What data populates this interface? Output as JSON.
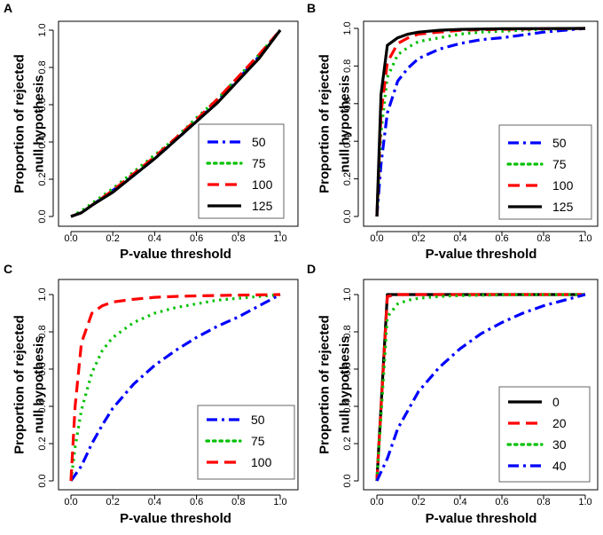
{
  "chart_data": [
    {
      "panel": "A",
      "type": "line",
      "xlabel": "P-value threshold",
      "ylabel": [
        "Proportion of rejected",
        "null  hypothesis"
      ],
      "xlim": [
        0,
        1
      ],
      "ylim": [
        0,
        1
      ],
      "xticks": [
        "0.0",
        "0.2",
        "0.4",
        "0.6",
        "0.8",
        "1.0"
      ],
      "yticks": [
        "0.0",
        "0.2",
        "0.4",
        "0.6",
        "0.8",
        "1.0"
      ],
      "legend_position": "bottom-right",
      "series": [
        {
          "name": "50",
          "color": "#0000ff",
          "style": "dashdot",
          "x": [
            0,
            0.05,
            0.1,
            0.2,
            0.3,
            0.4,
            0.5,
            0.6,
            0.7,
            0.8,
            0.9,
            1.0
          ],
          "y": [
            0,
            0.02,
            0.06,
            0.14,
            0.22,
            0.31,
            0.41,
            0.51,
            0.62,
            0.74,
            0.86,
            1.0
          ]
        },
        {
          "name": "75",
          "color": "#00c000",
          "style": "dotted",
          "x": [
            0,
            0.05,
            0.1,
            0.2,
            0.3,
            0.4,
            0.5,
            0.6,
            0.7,
            0.8,
            0.9,
            1.0
          ],
          "y": [
            0,
            0.03,
            0.07,
            0.15,
            0.24,
            0.33,
            0.42,
            0.53,
            0.63,
            0.75,
            0.87,
            1.0
          ]
        },
        {
          "name": "100",
          "color": "#ff0000",
          "style": "dashed",
          "x": [
            0,
            0.05,
            0.1,
            0.2,
            0.3,
            0.4,
            0.5,
            0.6,
            0.7,
            0.8,
            0.9,
            1.0
          ],
          "y": [
            0,
            0.02,
            0.06,
            0.14,
            0.23,
            0.32,
            0.42,
            0.52,
            0.63,
            0.75,
            0.87,
            1.0
          ]
        },
        {
          "name": "125",
          "color": "#000000",
          "style": "solid",
          "x": [
            0,
            0.05,
            0.1,
            0.2,
            0.3,
            0.4,
            0.5,
            0.6,
            0.7,
            0.8,
            0.9,
            1.0
          ],
          "y": [
            0,
            0.02,
            0.06,
            0.13,
            0.22,
            0.31,
            0.41,
            0.51,
            0.61,
            0.73,
            0.85,
            1.0
          ]
        }
      ]
    },
    {
      "panel": "B",
      "type": "line",
      "xlabel": "P-value threshold",
      "ylabel": [
        "Proportion of rejected",
        "null hypothesis"
      ],
      "xlim": [
        0,
        1
      ],
      "ylim": [
        0,
        1
      ],
      "xticks": [
        "0.0",
        "0.2",
        "0.4",
        "0.6",
        "0.8",
        "1.0"
      ],
      "yticks": [
        "0.0",
        "0.2",
        "0.4",
        "0.6",
        "0.8",
        "1.0"
      ],
      "legend_position": "bottom-right",
      "series": [
        {
          "name": "50",
          "color": "#0000ff",
          "style": "dashdot",
          "x": [
            0,
            0.02,
            0.05,
            0.1,
            0.15,
            0.2,
            0.3,
            0.4,
            0.5,
            0.6,
            0.7,
            0.8,
            0.9,
            1.0
          ],
          "y": [
            0,
            0.28,
            0.55,
            0.72,
            0.79,
            0.84,
            0.89,
            0.92,
            0.94,
            0.95,
            0.965,
            0.98,
            0.99,
            1.0
          ]
        },
        {
          "name": "75",
          "color": "#00c000",
          "style": "dotted",
          "x": [
            0,
            0.02,
            0.05,
            0.1,
            0.15,
            0.2,
            0.3,
            0.4,
            0.5,
            0.6,
            0.7,
            0.8,
            0.9,
            1.0
          ],
          "y": [
            0,
            0.45,
            0.74,
            0.86,
            0.9,
            0.93,
            0.95,
            0.97,
            0.98,
            0.985,
            0.99,
            0.995,
            0.998,
            1.0
          ]
        },
        {
          "name": "100",
          "color": "#ff0000",
          "style": "dashed",
          "x": [
            0,
            0.02,
            0.05,
            0.1,
            0.15,
            0.2,
            0.3,
            0.4,
            0.5,
            0.6,
            0.8,
            1.0
          ],
          "y": [
            0,
            0.55,
            0.82,
            0.92,
            0.95,
            0.97,
            0.98,
            0.99,
            0.993,
            0.995,
            0.998,
            1.0
          ]
        },
        {
          "name": "125",
          "color": "#000000",
          "style": "solid",
          "x": [
            0,
            0.02,
            0.05,
            0.1,
            0.15,
            0.2,
            0.3,
            0.4,
            0.6,
            0.8,
            1.0
          ],
          "y": [
            0,
            0.65,
            0.91,
            0.95,
            0.97,
            0.98,
            0.99,
            0.995,
            0.998,
            0.999,
            1.0
          ]
        }
      ]
    },
    {
      "panel": "C",
      "type": "line",
      "xlabel": "P-value threshold",
      "ylabel": [
        "Proportion of rejected",
        "null  hypothesis"
      ],
      "xlim": [
        0,
        1
      ],
      "ylim": [
        0,
        1
      ],
      "xticks": [
        "0.0",
        "0.2",
        "0.4",
        "0.6",
        "0.8",
        "1.0"
      ],
      "yticks": [
        "0.0",
        "0.2",
        "0.4",
        "0.6",
        "0.8",
        "1.0"
      ],
      "legend_position": "bottom-right",
      "series": [
        {
          "name": "50",
          "color": "#0000ff",
          "style": "dashdot",
          "x": [
            0,
            0.05,
            0.1,
            0.15,
            0.2,
            0.3,
            0.4,
            0.5,
            0.6,
            0.7,
            0.8,
            0.9,
            1.0
          ],
          "y": [
            0,
            0.08,
            0.2,
            0.3,
            0.39,
            0.52,
            0.62,
            0.7,
            0.77,
            0.83,
            0.88,
            0.94,
            1.0
          ]
        },
        {
          "name": "75",
          "color": "#00c000",
          "style": "dotted",
          "x": [
            0,
            0.02,
            0.05,
            0.1,
            0.15,
            0.2,
            0.3,
            0.4,
            0.5,
            0.6,
            0.7,
            0.8,
            0.9,
            1.0
          ],
          "y": [
            0,
            0.18,
            0.38,
            0.58,
            0.7,
            0.77,
            0.85,
            0.9,
            0.93,
            0.95,
            0.97,
            0.98,
            0.99,
            1.0
          ]
        },
        {
          "name": "100",
          "color": "#ff0000",
          "style": "dashed",
          "x": [
            0,
            0.02,
            0.05,
            0.1,
            0.15,
            0.2,
            0.3,
            0.4,
            0.5,
            0.6,
            0.8,
            1.0
          ],
          "y": [
            0,
            0.4,
            0.74,
            0.9,
            0.94,
            0.96,
            0.975,
            0.985,
            0.99,
            0.993,
            0.997,
            1.0
          ]
        }
      ]
    },
    {
      "panel": "D",
      "type": "line",
      "xlabel": "P-value threshold",
      "ylabel": [
        "Proportion of rejected",
        "null  hypothesis"
      ],
      "xlim": [
        0,
        1
      ],
      "ylim": [
        0,
        1
      ],
      "xticks": [
        "0.0",
        "0.2",
        "0.4",
        "0.6",
        "0.8",
        "1.0"
      ],
      "yticks": [
        "0.0",
        "0.2",
        "0.4",
        "0.6",
        "0.8",
        "1.0"
      ],
      "legend_position": "bottom-right",
      "series": [
        {
          "name": "0",
          "color": "#000000",
          "style": "solid",
          "x": [
            0,
            0.05,
            0.1,
            1.0
          ],
          "y": [
            0,
            1.0,
            1.0,
            1.0
          ]
        },
        {
          "name": "20",
          "color": "#ff0000",
          "style": "dashed",
          "x": [
            0,
            0.05,
            0.1,
            1.0
          ],
          "y": [
            0,
            0.99,
            1.0,
            1.0
          ]
        },
        {
          "name": "30",
          "color": "#00c000",
          "style": "dotted",
          "x": [
            0,
            0.05,
            0.1,
            0.15,
            0.2,
            0.3,
            0.4,
            0.6,
            1.0
          ],
          "y": [
            0,
            0.88,
            0.95,
            0.97,
            0.98,
            0.99,
            0.995,
            0.998,
            1.0
          ]
        },
        {
          "name": "40",
          "color": "#0000ff",
          "style": "dashdot",
          "x": [
            0,
            0.05,
            0.1,
            0.2,
            0.3,
            0.4,
            0.5,
            0.6,
            0.7,
            0.8,
            0.9,
            1.0
          ],
          "y": [
            0,
            0.12,
            0.28,
            0.48,
            0.61,
            0.71,
            0.79,
            0.85,
            0.9,
            0.94,
            0.97,
            1.0
          ]
        }
      ]
    }
  ]
}
